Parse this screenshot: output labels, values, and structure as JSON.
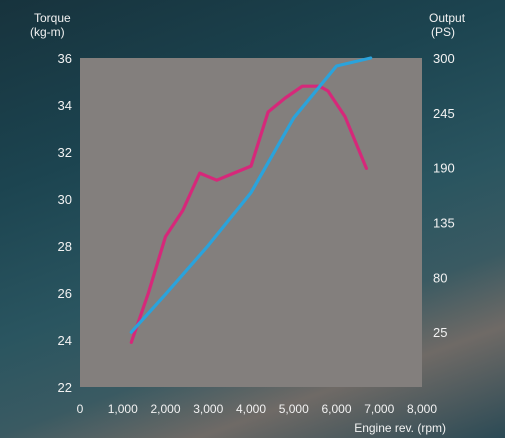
{
  "chart_data": {
    "type": "line",
    "y_left_label_line1": "Torque",
    "y_left_label_line2": "(kg-m)",
    "y_right_label_line1": "Output",
    "y_right_label_line2": "(PS)",
    "xlabel": "Engine rev. (rpm)",
    "xlim": [
      0,
      8000
    ],
    "ylim_left": [
      22,
      36
    ],
    "ylim_right": [
      -30,
      300
    ],
    "x_ticks": [
      0,
      1000,
      2000,
      3000,
      4000,
      5000,
      6000,
      7000,
      8000
    ],
    "x_tick_labels": [
      "0",
      "1,000",
      "2,000",
      "3,000",
      "4,000",
      "5,000",
      "6,000",
      "7,000",
      "8,000"
    ],
    "y_left_ticks": [
      22,
      24,
      26,
      28,
      30,
      32,
      34,
      36
    ],
    "y_left_tick_labels": [
      "22",
      "24",
      "26",
      "28",
      "30",
      "32",
      "34",
      "36"
    ],
    "y_right_ticks": [
      25,
      80,
      135,
      190,
      245,
      300
    ],
    "y_right_tick_labels": [
      "25",
      "80",
      "135",
      "190",
      "245",
      "300"
    ],
    "grid": false,
    "plot_background": "#837f7d",
    "series": [
      {
        "axis": "left",
        "color": "#d6287a",
        "x": [
          1200,
          1600,
          2000,
          2400,
          2800,
          3200,
          3600,
          4000,
          4400,
          4800,
          5200,
          5600,
          5800,
          6200,
          6700
        ],
        "values": [
          23.9,
          26.0,
          28.4,
          29.5,
          31.1,
          30.8,
          31.1,
          31.4,
          33.7,
          34.3,
          34.8,
          34.8,
          34.6,
          33.5,
          31.3
        ]
      },
      {
        "axis": "right",
        "color": "#2aa3dc",
        "x": [
          1200,
          2000,
          3000,
          4000,
          5000,
          6000,
          6800
        ],
        "values": [
          25,
          63,
          112,
          165,
          240,
          292,
          300
        ]
      }
    ]
  }
}
